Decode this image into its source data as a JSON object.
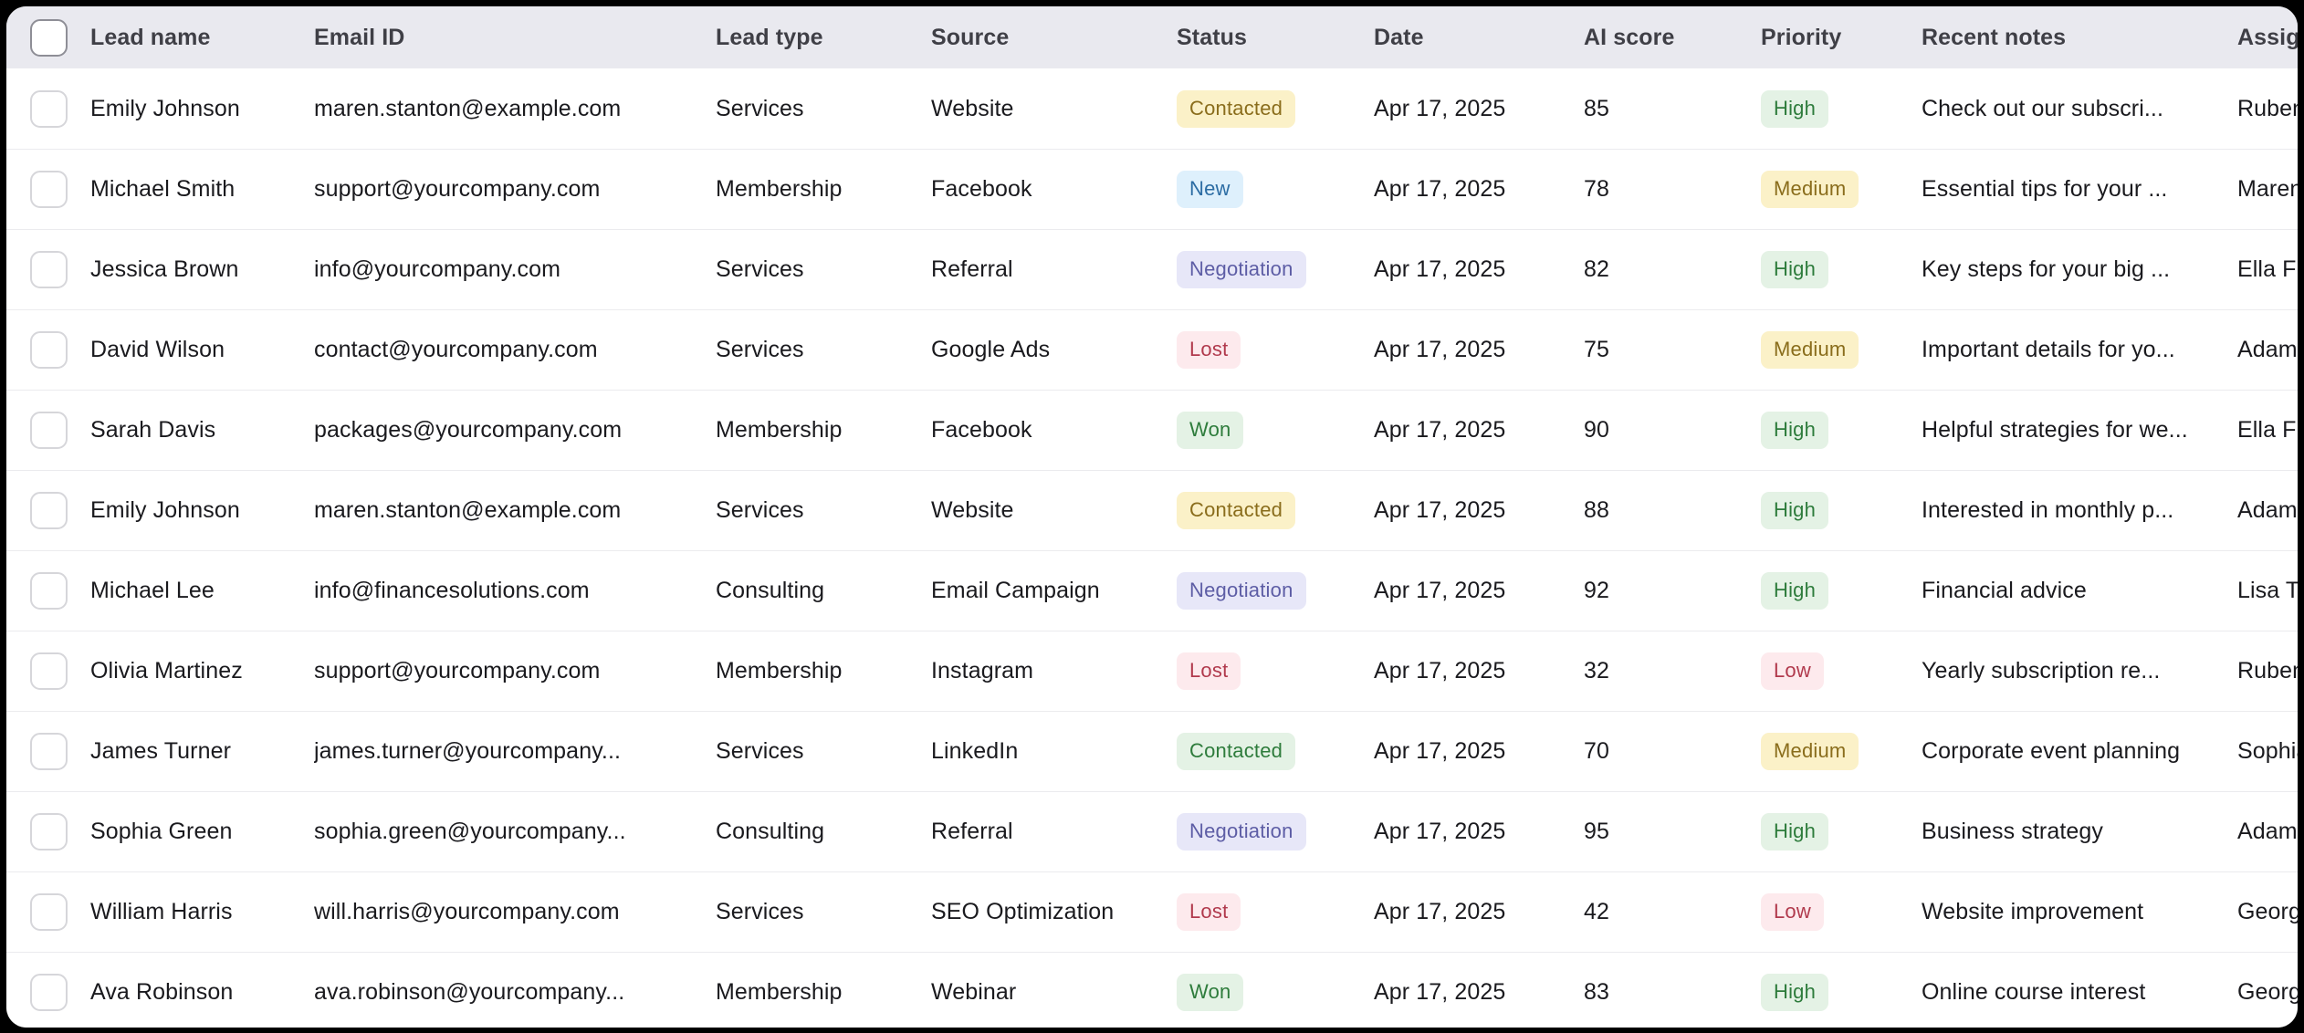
{
  "table": {
    "columns": [
      {
        "key": "select",
        "label": "",
        "name": "select-all-column"
      },
      {
        "key": "name",
        "label": "Lead name",
        "name": "column-lead-name"
      },
      {
        "key": "email",
        "label": "Email ID",
        "name": "column-email-id"
      },
      {
        "key": "lead_type",
        "label": "Lead type",
        "name": "column-lead-type"
      },
      {
        "key": "source",
        "label": "Source",
        "name": "column-source"
      },
      {
        "key": "status",
        "label": "Status",
        "name": "column-status"
      },
      {
        "key": "date",
        "label": "Date",
        "name": "column-date"
      },
      {
        "key": "ai_score",
        "label": "AI score",
        "name": "column-ai-score"
      },
      {
        "key": "priority",
        "label": "Priority",
        "name": "column-priority"
      },
      {
        "key": "notes",
        "label": "Recent notes",
        "name": "column-recent-notes"
      },
      {
        "key": "assigned",
        "label": "Assigned",
        "name": "column-assigned"
      }
    ],
    "rows": [
      {
        "name": "Emily Johnson",
        "email": "maren.stanton@example.com",
        "lead_type": "Services",
        "source": "Website",
        "status": "Contacted",
        "status_color": "yellow",
        "date": "Apr 17, 2025",
        "ai_score": "85",
        "priority": "High",
        "priority_color": "green",
        "notes": "Check out our subscri...",
        "assigned": "Ruben"
      },
      {
        "name": "Michael Smith",
        "email": "support@yourcompany.com",
        "lead_type": "Membership",
        "source": "Facebook",
        "status": "New",
        "status_color": "blue",
        "date": "Apr 17, 2025",
        "ai_score": "78",
        "priority": "Medium",
        "priority_color": "yellow",
        "notes": "Essential tips for your ...",
        "assigned": "Maren"
      },
      {
        "name": "Jessica Brown",
        "email": "info@yourcompany.com",
        "lead_type": "Services",
        "source": "Referral",
        "status": "Negotiation",
        "status_color": "lavender",
        "date": "Apr 17, 2025",
        "ai_score": "82",
        "priority": "High",
        "priority_color": "green",
        "notes": "Key steps for your big ...",
        "assigned": "Ella F"
      },
      {
        "name": "David Wilson",
        "email": "contact@yourcompany.com",
        "lead_type": "Services",
        "source": "Google Ads",
        "status": "Lost",
        "status_color": "pink",
        "date": "Apr 17, 2025",
        "ai_score": "75",
        "priority": "Medium",
        "priority_color": "yellow",
        "notes": "Important details for yo...",
        "assigned": "Adam"
      },
      {
        "name": "Sarah Davis",
        "email": "packages@yourcompany.com",
        "lead_type": "Membership",
        "source": "Facebook",
        "status": "Won",
        "status_color": "green",
        "date": "Apr 17, 2025",
        "ai_score": "90",
        "priority": "High",
        "priority_color": "green",
        "notes": "Helpful strategies for we...",
        "assigned": "Ella F"
      },
      {
        "name": "Emily Johnson",
        "email": "maren.stanton@example.com",
        "lead_type": "Services",
        "source": "Website",
        "status": "Contacted",
        "status_color": "yellow",
        "date": "Apr 17, 2025",
        "ai_score": "88",
        "priority": "High",
        "priority_color": "green",
        "notes": "Interested in monthly p...",
        "assigned": "Adam"
      },
      {
        "name": "Michael Lee",
        "email": "info@financesolutions.com",
        "lead_type": "Consulting",
        "source": "Email Campaign",
        "status": "Negotiation",
        "status_color": "lavender",
        "date": "Apr 17, 2025",
        "ai_score": "92",
        "priority": "High",
        "priority_color": "green",
        "notes": "Financial advice",
        "assigned": "Lisa T"
      },
      {
        "name": "Olivia Martinez",
        "email": "support@yourcompany.com",
        "lead_type": "Membership",
        "source": "Instagram",
        "status": "Lost",
        "status_color": "pink",
        "date": "Apr 17, 2025",
        "ai_score": "32",
        "priority": "Low",
        "priority_color": "pink",
        "notes": "Yearly subscription re...",
        "assigned": "Ruben"
      },
      {
        "name": "James Turner",
        "email": "james.turner@yourcompany...",
        "lead_type": "Services",
        "source": "LinkedIn",
        "status": "Contacted",
        "status_color": "green",
        "date": "Apr 17, 2025",
        "ai_score": "70",
        "priority": "Medium",
        "priority_color": "yellow",
        "notes": "Corporate event planning",
        "assigned": "Sophia"
      },
      {
        "name": "Sophia Green",
        "email": "sophia.green@yourcompany...",
        "lead_type": "Consulting",
        "source": "Referral",
        "status": "Negotiation",
        "status_color": "lavender",
        "date": "Apr 17, 2025",
        "ai_score": "95",
        "priority": "High",
        "priority_color": "green",
        "notes": "Business strategy",
        "assigned": "Adam"
      },
      {
        "name": "William Harris",
        "email": "will.harris@yourcompany.com",
        "lead_type": "Services",
        "source": "SEO Optimization",
        "status": "Lost",
        "status_color": "pink",
        "date": "Apr 17, 2025",
        "ai_score": "42",
        "priority": "Low",
        "priority_color": "pink",
        "notes": "Website improvement",
        "assigned": "George"
      },
      {
        "name": "Ava Robinson",
        "email": "ava.robinson@yourcompany...",
        "lead_type": "Membership",
        "source": "Webinar",
        "status": "Won",
        "status_color": "green",
        "date": "Apr 17, 2025",
        "ai_score": "83",
        "priority": "High",
        "priority_color": "green",
        "notes": "Online course interest",
        "assigned": "George"
      }
    ]
  },
  "badge_palette": {
    "yellow": {
      "bg": "#fbf1c8",
      "text": "#8a6d1c"
    },
    "blue": {
      "bg": "#def0fc",
      "text": "#2b6ca3"
    },
    "lavender": {
      "bg": "#e7e7f8",
      "text": "#5d5da5"
    },
    "pink": {
      "bg": "#fdeaed",
      "text": "#b13a4d"
    },
    "green": {
      "bg": "#e4f2e5",
      "text": "#2e7c3c"
    }
  },
  "theme": {
    "page_bg": "#000000",
    "card_bg": "#ffffff",
    "header_bg": "#e9e9ef",
    "header_text": "#3f3f46",
    "row_text": "#1a1a1e",
    "row_border": "#ebebee"
  }
}
